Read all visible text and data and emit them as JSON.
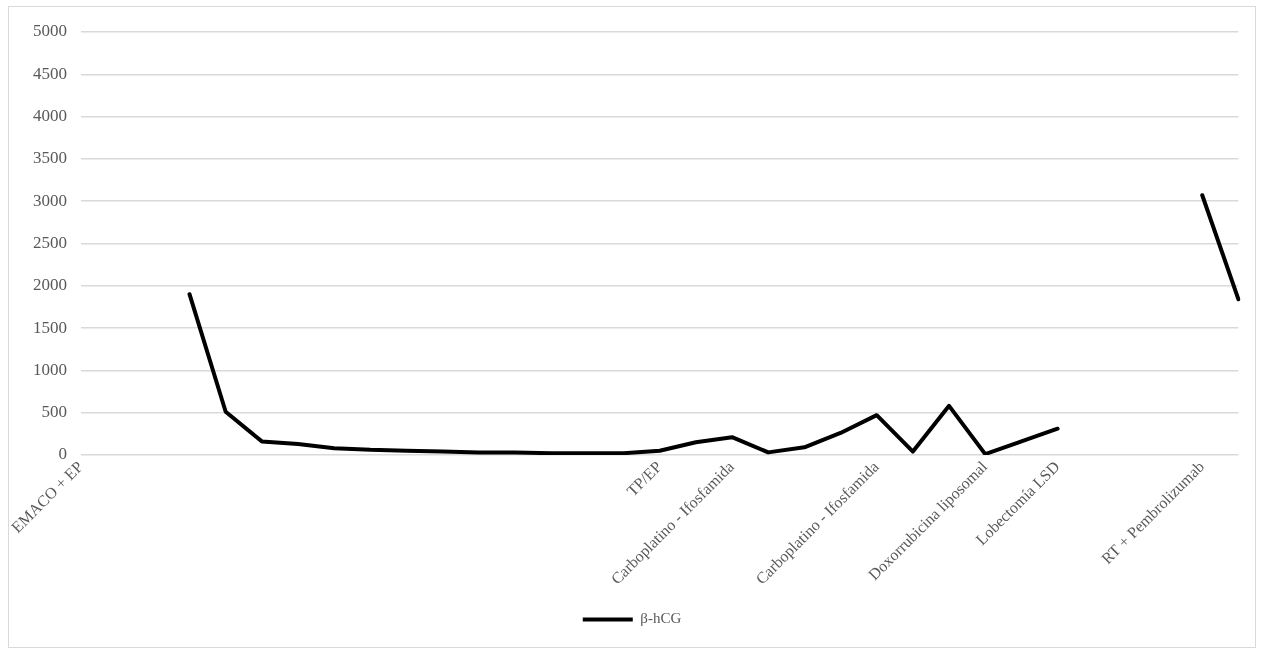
{
  "chart_data": {
    "type": "line",
    "categories": [
      "EMACO + EP",
      null,
      null,
      null,
      null,
      null,
      null,
      null,
      null,
      null,
      null,
      null,
      null,
      null,
      null,
      null,
      "TP/EP",
      null,
      "Carboplatino - Ifosfamida",
      null,
      null,
      null,
      "Carboplatino - Ifosfamida",
      null,
      null,
      "Doxorrubicina liposomal",
      null,
      "Lobectomía LSD",
      null,
      null,
      null,
      "RT + Pembrolizumab",
      null
    ],
    "series": [
      {
        "name": "β-hCG",
        "color": "#000000",
        "values": [
          null,
          null,
          null,
          1900,
          510,
          160,
          130,
          80,
          60,
          50,
          40,
          30,
          30,
          20,
          20,
          20,
          50,
          150,
          210,
          30,
          90,
          260,
          470,
          40,
          580,
          10,
          160,
          310,
          null,
          null,
          null,
          3070,
          1840
        ]
      }
    ],
    "ylim": [
      0,
      5000
    ],
    "yticks": [
      0,
      500,
      1000,
      1500,
      2000,
      2500,
      3000,
      3500,
      4000,
      4500,
      5000
    ],
    "grid": "y",
    "legend": "bottom",
    "marker": "none",
    "line_style": "solid"
  }
}
